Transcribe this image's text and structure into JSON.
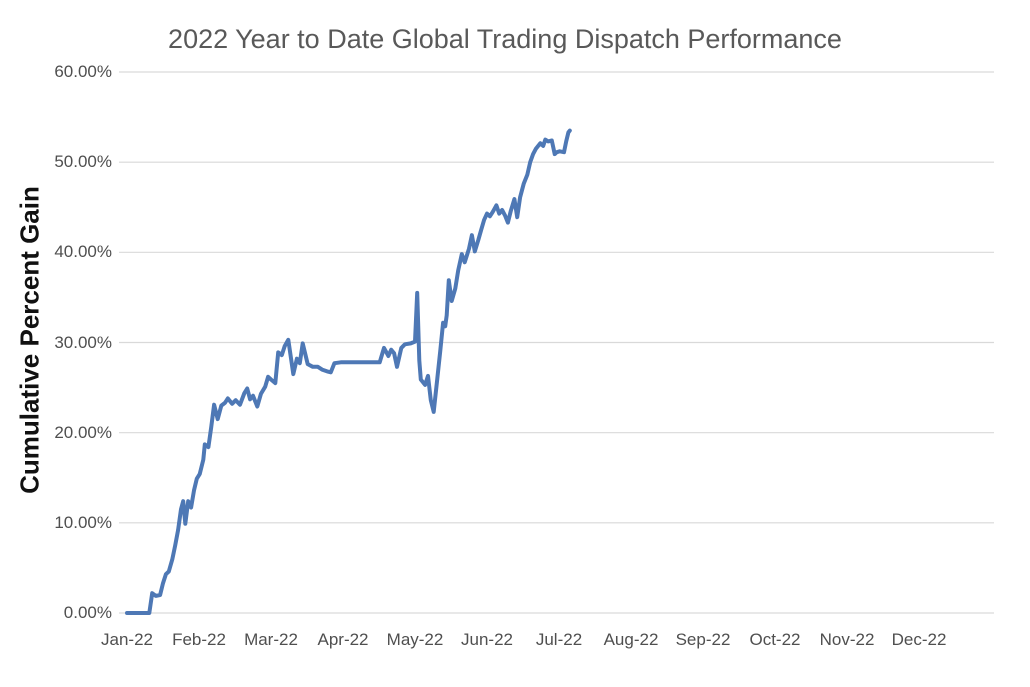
{
  "chart_data": {
    "type": "line",
    "title": "2022 Year to Date Global Trading Dispatch Performance",
    "xlabel": "",
    "ylabel": "Cumulative Percent Gain",
    "x_tick_labels": [
      "Jan-22",
      "Feb-22",
      "Mar-22",
      "Apr-22",
      "May-22",
      "Jun-22",
      "Jul-22",
      "Aug-22",
      "Sep-22",
      "Oct-22",
      "Nov-22",
      "Dec-22"
    ],
    "y_tick_labels": [
      "0.00%",
      "10.00%",
      "20.00%",
      "30.00%",
      "40.00%",
      "50.00%",
      "60.00%"
    ],
    "ylim": [
      0,
      60
    ],
    "xlim_months": [
      0,
      12
    ],
    "grid": "horizontal",
    "legend": "none",
    "line_color": "#4E78B5",
    "gridline_color": "#D9D9D9",
    "title_color": "#595959",
    "tick_color": "#4F4F4F",
    "series": [
      {
        "name": "Cumulative Percent Gain",
        "x_unit": "months_since_Jan-22",
        "y_unit": "percent",
        "points": [
          [
            0,
            0
          ],
          [
            0.31,
            0
          ],
          [
            0.35,
            2.2
          ],
          [
            0.4,
            1.9
          ],
          [
            0.46,
            2
          ],
          [
            0.5,
            3.3
          ],
          [
            0.54,
            4.3
          ],
          [
            0.58,
            4.6
          ],
          [
            0.63,
            6
          ],
          [
            0.67,
            7.5
          ],
          [
            0.71,
            9.2
          ],
          [
            0.75,
            11.5
          ],
          [
            0.78,
            12.4
          ],
          [
            0.81,
            9.9
          ],
          [
            0.85,
            12.4
          ],
          [
            0.89,
            11.7
          ],
          [
            0.93,
            13.6
          ],
          [
            0.97,
            14.9
          ],
          [
            1.01,
            15.4
          ],
          [
            1.06,
            17
          ],
          [
            1.08,
            18.7
          ],
          [
            1.13,
            18.4
          ],
          [
            1.17,
            20.6
          ],
          [
            1.21,
            23.1
          ],
          [
            1.26,
            21.5
          ],
          [
            1.31,
            23
          ],
          [
            1.36,
            23.3
          ],
          [
            1.4,
            23.8
          ],
          [
            1.46,
            23.2
          ],
          [
            1.51,
            23.6
          ],
          [
            1.57,
            23.1
          ],
          [
            1.63,
            24.4
          ],
          [
            1.67,
            24.9
          ],
          [
            1.71,
            23.7
          ],
          [
            1.75,
            24.1
          ],
          [
            1.81,
            22.9
          ],
          [
            1.86,
            24.3
          ],
          [
            1.92,
            25.1
          ],
          [
            1.96,
            26.2
          ],
          [
            2,
            25.9
          ],
          [
            2.06,
            25.5
          ],
          [
            2.1,
            28.9
          ],
          [
            2.15,
            28.6
          ],
          [
            2.19,
            29.6
          ],
          [
            2.24,
            30.3
          ],
          [
            2.31,
            26.5
          ],
          [
            2.36,
            28.2
          ],
          [
            2.4,
            27.7
          ],
          [
            2.44,
            29.9
          ],
          [
            2.51,
            27.6
          ],
          [
            2.58,
            27.3
          ],
          [
            2.65,
            27.3
          ],
          [
            2.71,
            27
          ],
          [
            2.78,
            26.8
          ],
          [
            2.83,
            26.7
          ],
          [
            2.88,
            27.7
          ],
          [
            2.97,
            27.8
          ],
          [
            3.51,
            27.8
          ],
          [
            3.57,
            29.4
          ],
          [
            3.63,
            28.5
          ],
          [
            3.67,
            29.2
          ],
          [
            3.71,
            28.8
          ],
          [
            3.75,
            27.3
          ],
          [
            3.81,
            29.4
          ],
          [
            3.86,
            29.8
          ],
          [
            3.94,
            29.9
          ],
          [
            4,
            30.1
          ],
          [
            4.03,
            35.5
          ],
          [
            4.06,
            28
          ],
          [
            4.08,
            25.9
          ],
          [
            4.14,
            25.3
          ],
          [
            4.18,
            26.3
          ],
          [
            4.22,
            23.6
          ],
          [
            4.26,
            22.3
          ],
          [
            4.31,
            26
          ],
          [
            4.35,
            29
          ],
          [
            4.39,
            32.2
          ],
          [
            4.42,
            31.8
          ],
          [
            4.44,
            33
          ],
          [
            4.47,
            36.9
          ],
          [
            4.51,
            34.6
          ],
          [
            4.56,
            36
          ],
          [
            4.6,
            38
          ],
          [
            4.65,
            39.8
          ],
          [
            4.69,
            38.9
          ],
          [
            4.75,
            40.4
          ],
          [
            4.79,
            41.9
          ],
          [
            4.83,
            40.1
          ],
          [
            4.88,
            41.4
          ],
          [
            4.92,
            42.5
          ],
          [
            4.96,
            43.6
          ],
          [
            5,
            44.3
          ],
          [
            5.04,
            44
          ],
          [
            5.08,
            44.5
          ],
          [
            5.13,
            45.2
          ],
          [
            5.17,
            44.3
          ],
          [
            5.21,
            44.7
          ],
          [
            5.25,
            44.1
          ],
          [
            5.29,
            43.3
          ],
          [
            5.33,
            44.6
          ],
          [
            5.38,
            45.9
          ],
          [
            5.42,
            43.9
          ],
          [
            5.46,
            46.1
          ],
          [
            5.51,
            47.6
          ],
          [
            5.56,
            48.6
          ],
          [
            5.6,
            50
          ],
          [
            5.64,
            50.9
          ],
          [
            5.68,
            51.5
          ],
          [
            5.74,
            52.1
          ],
          [
            5.78,
            51.8
          ],
          [
            5.81,
            52.5
          ],
          [
            5.85,
            52.3
          ],
          [
            5.9,
            52.4
          ],
          [
            5.94,
            50.9
          ],
          [
            5.97,
            51.1
          ],
          [
            6.01,
            51.2
          ],
          [
            6.07,
            51.1
          ],
          [
            6.1,
            52.3
          ],
          [
            6.13,
            53.3
          ],
          [
            6.15,
            53.5
          ]
        ]
      }
    ]
  }
}
